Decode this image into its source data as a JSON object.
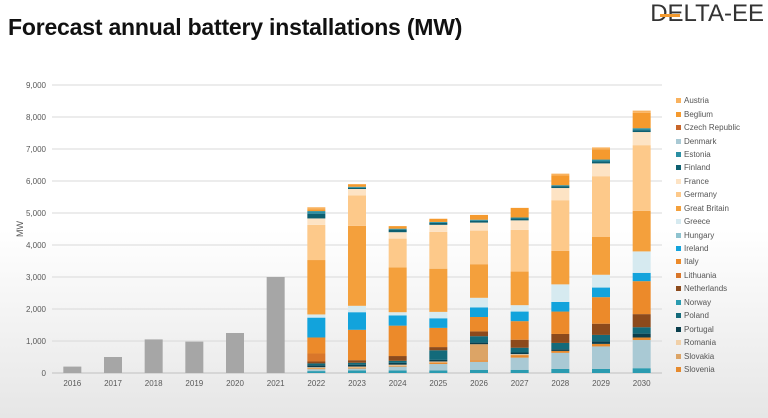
{
  "header": {
    "title": "Forecast annual battery installations (MW)",
    "logo": "DELTA-EE"
  },
  "chart_data": {
    "type": "bar",
    "stacked": true,
    "title": "Forecast annual battery installations (MW)",
    "xlabel": "",
    "ylabel": "MW",
    "ylim": [
      0,
      9000
    ],
    "yticks": [
      "0",
      "1,000",
      "2,000",
      "3,000",
      "4,000",
      "5,000",
      "6,000",
      "7,000",
      "8,000",
      "9,000"
    ],
    "grid": true,
    "legend_position": "right",
    "categories": [
      "2016",
      "2017",
      "2018",
      "2019",
      "2020",
      "2021",
      "2022",
      "2023",
      "2024",
      "2025",
      "2026",
      "2027",
      "2028",
      "2029",
      "2030"
    ],
    "historical": {
      "color": "#a6a6a6",
      "values": [
        200,
        500,
        1050,
        980,
        1250,
        3000,
        0,
        0,
        0,
        0,
        0,
        0,
        0,
        0,
        0
      ]
    },
    "series": [
      {
        "name": "Austria",
        "color": "#f9b25e",
        "values": [
          0,
          0,
          0,
          0,
          0,
          0,
          60,
          0,
          0,
          0,
          0,
          0,
          60,
          60,
          70
        ]
      },
      {
        "name": "Beglium",
        "color": "#f59a2e",
        "values": [
          0,
          0,
          0,
          0,
          0,
          0,
          60,
          80,
          80,
          100,
          150,
          300,
          300,
          320,
          480
        ]
      },
      {
        "name": "Czech Republic",
        "color": "#c8662a",
        "values": [
          0,
          0,
          0,
          0,
          0,
          0,
          0,
          0,
          0,
          0,
          0,
          0,
          0,
          0,
          0
        ]
      },
      {
        "name": "Denmark",
        "color": "#a9c9d4",
        "values": [
          0,
          0,
          0,
          0,
          0,
          0,
          60,
          60,
          120,
          200,
          250,
          380,
          500,
          700,
          880
        ]
      },
      {
        "name": "Estonia",
        "color": "#2b8fa3",
        "values": [
          0,
          0,
          0,
          0,
          0,
          0,
          80,
          30,
          30,
          30,
          30,
          30,
          30,
          60,
          60
        ]
      },
      {
        "name": "Finland",
        "color": "#0d5f70",
        "values": [
          0,
          0,
          0,
          0,
          0,
          0,
          150,
          40,
          80,
          60,
          60,
          60,
          60,
          60,
          60
        ]
      },
      {
        "name": "France",
        "color": "#fde3c4",
        "values": [
          0,
          0,
          0,
          0,
          0,
          0,
          200,
          200,
          200,
          220,
          250,
          300,
          380,
          400,
          410
        ]
      },
      {
        "name": "Germany",
        "color": "#fdc98a",
        "values": [
          0,
          0,
          0,
          0,
          0,
          0,
          1100,
          950,
          900,
          1150,
          1050,
          1300,
          1580,
          1900,
          2050
        ]
      },
      {
        "name": "Great Britain",
        "color": "#f4a03c",
        "values": [
          0,
          0,
          0,
          0,
          0,
          0,
          1700,
          2500,
          1400,
          1350,
          1050,
          1050,
          1050,
          1180,
          1270
        ]
      },
      {
        "name": "Greece",
        "color": "#d6eaf0",
        "values": [
          0,
          0,
          0,
          0,
          0,
          0,
          100,
          200,
          100,
          200,
          300,
          200,
          550,
          400,
          670
        ]
      },
      {
        "name": "Hungary",
        "color": "#8ec3cf",
        "values": [
          0,
          0,
          0,
          0,
          0,
          0,
          0,
          0,
          0,
          0,
          0,
          0,
          0,
          0,
          0
        ]
      },
      {
        "name": "Ireland",
        "color": "#12a3dc",
        "values": [
          0,
          0,
          0,
          0,
          0,
          0,
          620,
          550,
          320,
          300,
          300,
          300,
          300,
          300,
          260
        ]
      },
      {
        "name": "Italy",
        "color": "#ec8a2a",
        "values": [
          0,
          0,
          0,
          0,
          0,
          0,
          500,
          950,
          950,
          600,
          450,
          580,
          700,
          830,
          1030
        ]
      },
      {
        "name": "Lithuania",
        "color": "#d9762a",
        "values": [
          0,
          0,
          0,
          0,
          0,
          0,
          250,
          0,
          0,
          0,
          0,
          0,
          0,
          0,
          0
        ]
      },
      {
        "name": "Netherlands",
        "color": "#8c4a1c",
        "values": [
          0,
          0,
          0,
          0,
          0,
          0,
          60,
          80,
          150,
          100,
          150,
          250,
          280,
          350,
          410
        ]
      },
      {
        "name": "Norway",
        "color": "#2a9bb0",
        "values": [
          0,
          0,
          0,
          0,
          0,
          0,
          60,
          80,
          80,
          80,
          100,
          100,
          130,
          130,
          150
        ]
      },
      {
        "name": "Poland",
        "color": "#136a7a",
        "values": [
          0,
          0,
          0,
          0,
          0,
          0,
          60,
          60,
          60,
          300,
          200,
          150,
          200,
          200,
          200
        ]
      },
      {
        "name": "Portugal",
        "color": "#0a3e4c",
        "values": [
          0,
          0,
          0,
          0,
          0,
          0,
          60,
          60,
          60,
          50,
          50,
          50,
          50,
          80,
          120
        ]
      },
      {
        "name": "Romania",
        "color": "#f1d0a8",
        "values": [
          0,
          0,
          0,
          0,
          0,
          0,
          30,
          30,
          30,
          30,
          0,
          30,
          0,
          0,
          0
        ]
      },
      {
        "name": "Slovakia",
        "color": "#dca466",
        "values": [
          0,
          0,
          0,
          0,
          0,
          0,
          0,
          0,
          0,
          0,
          500,
          0,
          0,
          0,
          0
        ]
      },
      {
        "name": "Slovenia",
        "color": "#e68a2e",
        "values": [
          0,
          0,
          0,
          0,
          0,
          0,
          30,
          30,
          30,
          50,
          50,
          80,
          60,
          80,
          80
        ]
      }
    ]
  }
}
